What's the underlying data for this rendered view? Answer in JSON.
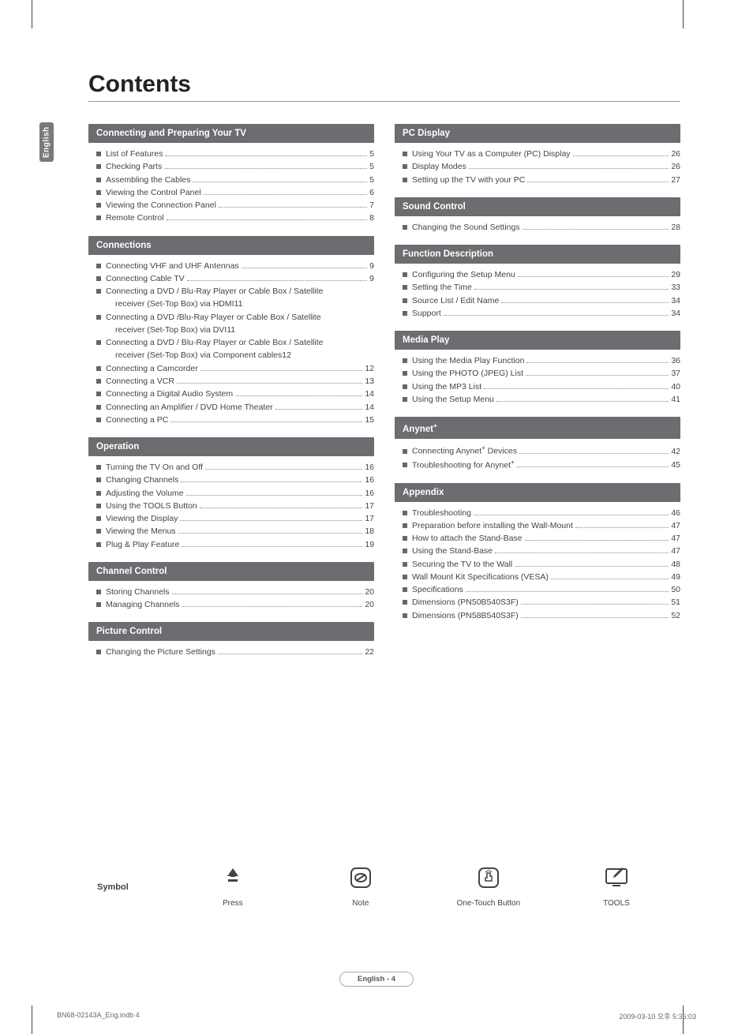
{
  "sidetab": "English",
  "title": "Contents",
  "leftSections": [
    {
      "header": "Connecting and Preparing Your TV",
      "items": [
        {
          "label": "List of Features",
          "page": "5"
        },
        {
          "label": "Checking Parts",
          "page": "5"
        },
        {
          "label": "Assembling the Cables",
          "page": "5"
        },
        {
          "label": "Viewing the Control Panel",
          "page": "6"
        },
        {
          "label": "Viewing the Connection Panel",
          "page": "7"
        },
        {
          "label": "Remote Control",
          "page": "8"
        }
      ]
    },
    {
      "header": "Connections",
      "items": [
        {
          "label": "Connecting VHF and UHF Antennas",
          "page": "9"
        },
        {
          "label": "Connecting Cable TV",
          "page": "9"
        },
        {
          "label": "Connecting a DVD / Blu-Ray Player or Cable Box / Satellite",
          "sub": "receiver (Set-Top Box) via HDMI",
          "page": "11"
        },
        {
          "label": "Connecting a DVD /Blu-Ray Player or Cable Box / Satellite",
          "sub": "receiver (Set-Top Box) via DVI",
          "page": "11"
        },
        {
          "label": "Connecting a DVD / Blu-Ray Player or Cable Box / Satellite",
          "sub": "receiver (Set-Top Box) via Component cables",
          "page": "12"
        },
        {
          "label": "Connecting a Camcorder",
          "page": "12"
        },
        {
          "label": "Connecting a VCR",
          "page": "13"
        },
        {
          "label": "Connecting a Digital Audio System",
          "page": "14"
        },
        {
          "label": "Connecting an Amplifier / DVD Home Theater",
          "page": "14"
        },
        {
          "label": "Connecting a PC",
          "page": "15"
        }
      ]
    },
    {
      "header": "Operation",
      "items": [
        {
          "label": "Turning the TV On and Off",
          "page": "16"
        },
        {
          "label": "Changing Channels",
          "page": "16"
        },
        {
          "label": "Adjusting the Volume",
          "page": "16"
        },
        {
          "label": "Using the TOOLS Button",
          "page": "17"
        },
        {
          "label": "Viewing the Display",
          "page": "17"
        },
        {
          "label": "Viewing the Menus",
          "page": "18"
        },
        {
          "label": "Plug & Play Feature",
          "page": "19"
        }
      ]
    },
    {
      "header": "Channel Control",
      "items": [
        {
          "label": "Storing Channels",
          "page": "20"
        },
        {
          "label": "Managing Channels",
          "page": "20"
        }
      ]
    },
    {
      "header": "Picture Control",
      "items": [
        {
          "label": "Changing the Picture Settings",
          "page": "22"
        }
      ]
    }
  ],
  "rightSections": [
    {
      "header": "PC Display",
      "items": [
        {
          "label": "Using Your TV as a Computer (PC) Display",
          "page": "26"
        },
        {
          "label": "Display Modes",
          "page": "26"
        },
        {
          "label": "Setting up the TV with your PC",
          "page": "27"
        }
      ]
    },
    {
      "header": "Sound Control",
      "items": [
        {
          "label": "Changing the Sound Settings",
          "page": "28"
        }
      ]
    },
    {
      "header": "Function Description",
      "items": [
        {
          "label": "Configuring the Setup Menu",
          "page": "29"
        },
        {
          "label": "Setting the Time",
          "page": "33"
        },
        {
          "label": "Source List / Edit Name",
          "page": "34"
        },
        {
          "label": "Support",
          "page": "34"
        }
      ]
    },
    {
      "header": "Media Play",
      "items": [
        {
          "label": "Using the Media Play Function",
          "page": "36"
        },
        {
          "label": "Using the PHOTO (JPEG) List",
          "page": "37"
        },
        {
          "label": "Using the MP3 List",
          "page": "40"
        },
        {
          "label": "Using the Setup Menu",
          "page": "41"
        }
      ]
    },
    {
      "header": "Anynet",
      "plus": true,
      "items": [
        {
          "label": "Connecting Anynet",
          "plus": true,
          "suffix": " Devices",
          "page": "42"
        },
        {
          "label": "Troubleshooting for Anynet",
          "plus": true,
          "suffix": "",
          "page": "45"
        }
      ]
    },
    {
      "header": "Appendix",
      "items": [
        {
          "label": "Troubleshooting",
          "page": "46"
        },
        {
          "label": "Preparation before installing the Wall-Mount",
          "page": "47"
        },
        {
          "label": "How to attach the Stand-Base",
          "page": "47"
        },
        {
          "label": "Using the Stand-Base",
          "page": "47"
        },
        {
          "label": "Securing the TV to the Wall",
          "page": "48"
        },
        {
          "label": "Wall Mount Kit Specifications (VESA)",
          "page": "49"
        },
        {
          "label": "Specifications",
          "page": "50"
        },
        {
          "label": "Dimensions (PN50B540S3F)",
          "page": "51"
        },
        {
          "label": "Dimensions (PN58B540S3F)",
          "page": "52"
        }
      ]
    }
  ],
  "symbolRow": {
    "label": "Symbol",
    "items": [
      {
        "caption": "Press"
      },
      {
        "caption": "Note"
      },
      {
        "caption": "One-Touch Button"
      },
      {
        "caption": "TOOLS"
      }
    ]
  },
  "footerPill": "English - 4",
  "footerLeft": "BN68-02143A_Eng.indb   4",
  "footerRight": "2009-03-10   오후 5:36:03",
  "colors": {
    "sectionHeaderBg": "#6b6d70",
    "sidetabBg": "#7a7a7a"
  }
}
